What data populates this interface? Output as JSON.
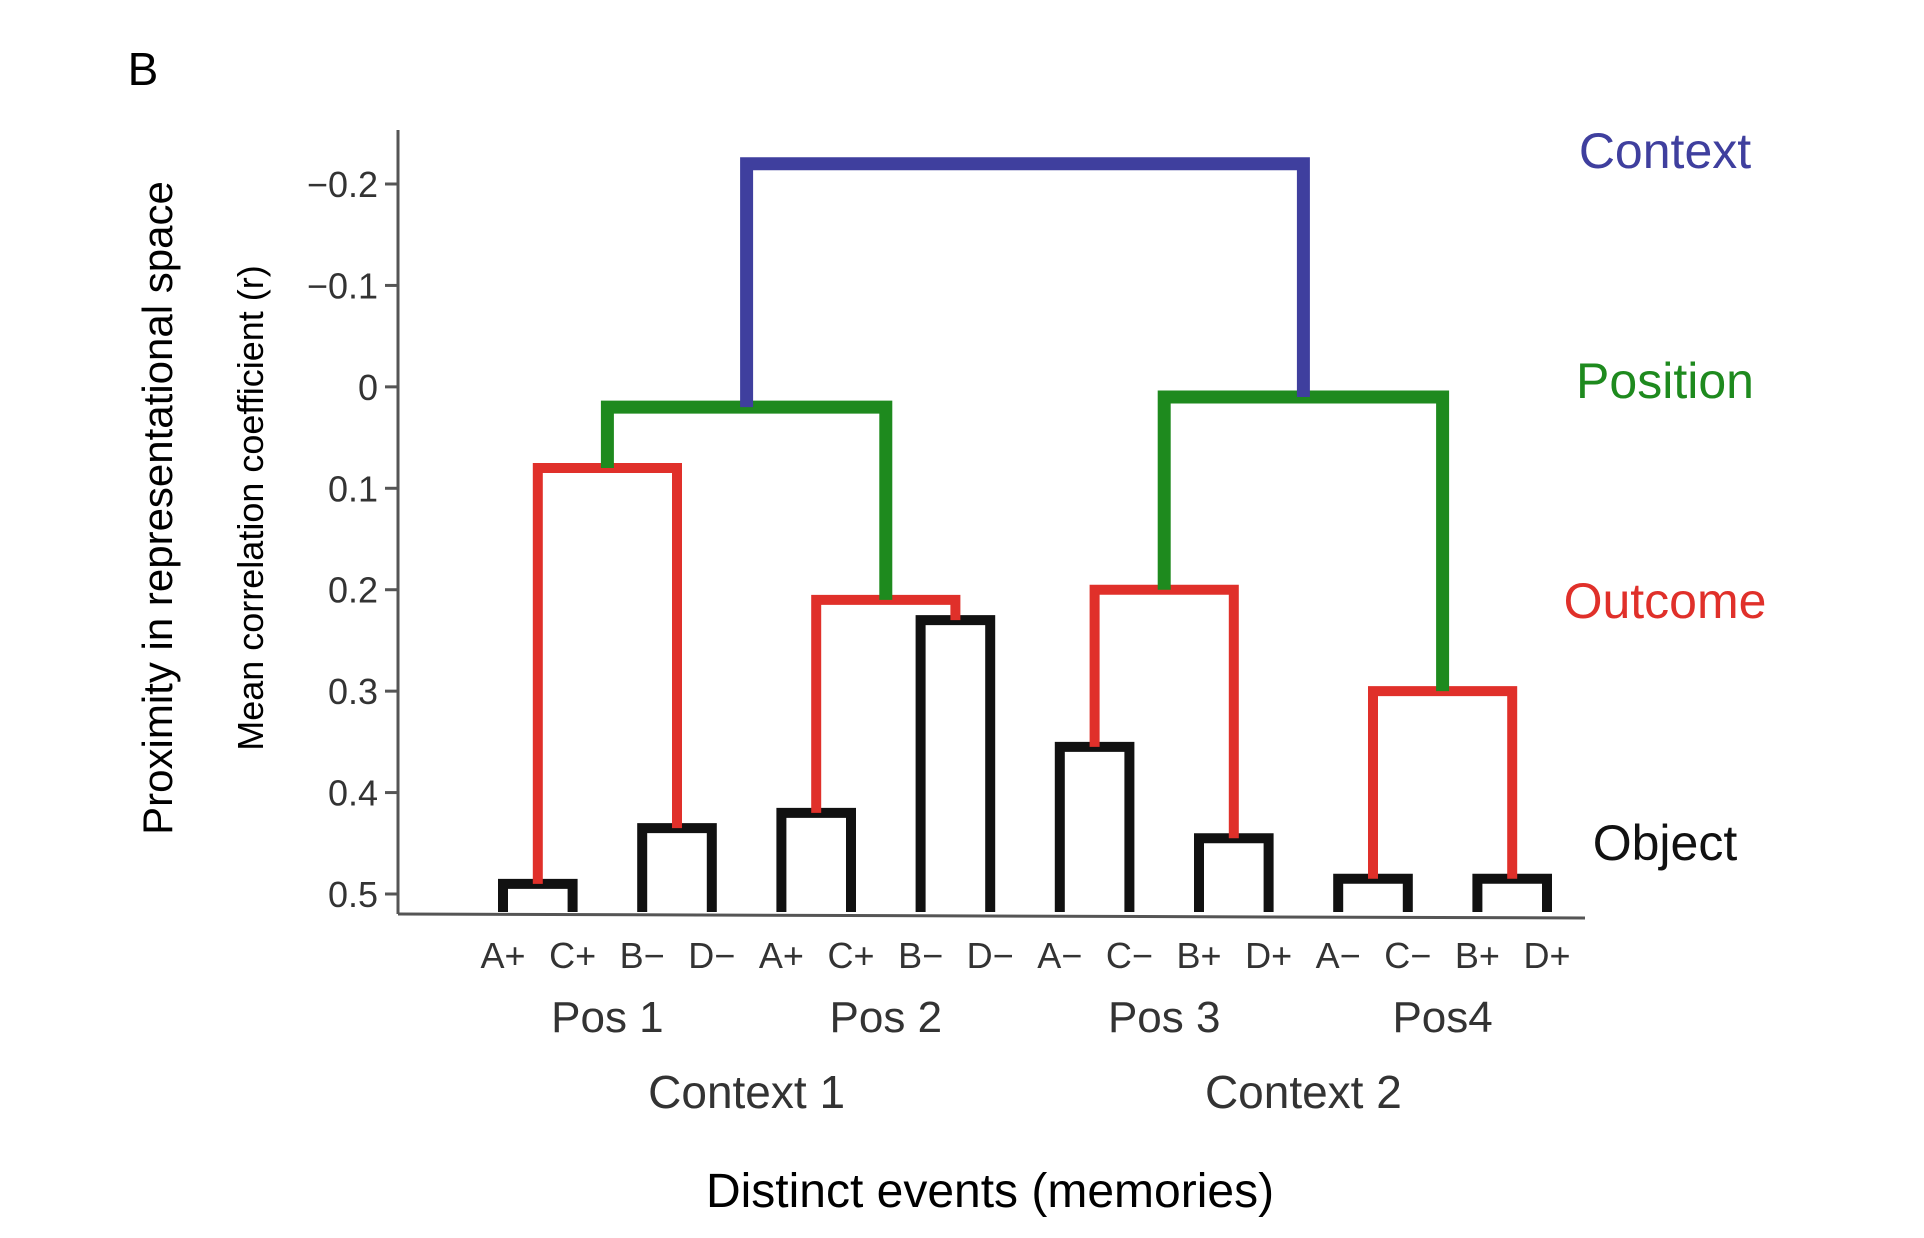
{
  "panel_label": "B",
  "chart_data": {
    "type": "dendrogram",
    "y_label_outer": "Proximity in representational space",
    "y_label_inner": "Mean correlation coefficient (r)",
    "x_label": "Distinct events (memories)",
    "y_ticks": [
      "−0.2",
      "−0.1",
      "0",
      "0.1",
      "0.2",
      "0.3",
      "0.4",
      "0.5"
    ],
    "y_tick_values": [
      -0.2,
      -0.1,
      0,
      0.1,
      0.2,
      0.3,
      0.4,
      0.5
    ],
    "y_range": [
      -0.25,
      0.52
    ],
    "y_axis_inverted": true,
    "leaves": [
      "A+",
      "C+",
      "B−",
      "D−",
      "A+",
      "C+",
      "B−",
      "D−",
      "A−",
      "C−",
      "B+",
      "D+",
      "A−",
      "C−",
      "B+",
      "D+"
    ],
    "position_groups": [
      {
        "label": "Pos 1",
        "leaf_start": 0,
        "leaf_end": 3
      },
      {
        "label": "Pos 2",
        "leaf_start": 4,
        "leaf_end": 7
      },
      {
        "label": "Pos 3",
        "leaf_start": 8,
        "leaf_end": 11
      },
      {
        "label": "Pos4",
        "leaf_start": 12,
        "leaf_end": 15
      }
    ],
    "context_groups": [
      {
        "label": "Context 1",
        "leaf_start": 0,
        "leaf_end": 7
      },
      {
        "label": "Context 2",
        "leaf_start": 8,
        "leaf_end": 15
      }
    ],
    "levels": [
      {
        "name": "Context",
        "color": "#3f3f9e"
      },
      {
        "name": "Position",
        "color": "#1e8a1e"
      },
      {
        "name": "Outcome",
        "color": "#e0302a"
      },
      {
        "name": "Object",
        "color": "#111111"
      }
    ],
    "merges": [
      {
        "id": "o1",
        "left": "leaf:0",
        "right": "leaf:1",
        "height": 0.49,
        "level": "Object"
      },
      {
        "id": "o2",
        "left": "leaf:2",
        "right": "leaf:3",
        "height": 0.435,
        "level": "Object"
      },
      {
        "id": "o3",
        "left": "leaf:4",
        "right": "leaf:5",
        "height": 0.42,
        "level": "Object"
      },
      {
        "id": "o4",
        "left": "leaf:6",
        "right": "leaf:7",
        "height": 0.23,
        "level": "Object"
      },
      {
        "id": "o5",
        "left": "leaf:8",
        "right": "leaf:9",
        "height": 0.355,
        "level": "Object"
      },
      {
        "id": "o6",
        "left": "leaf:10",
        "right": "leaf:11",
        "height": 0.445,
        "level": "Object"
      },
      {
        "id": "o7",
        "left": "leaf:12",
        "right": "leaf:13",
        "height": 0.485,
        "level": "Object"
      },
      {
        "id": "o8",
        "left": "leaf:14",
        "right": "leaf:15",
        "height": 0.485,
        "level": "Object"
      },
      {
        "id": "r1",
        "left": "o1",
        "right": "o2",
        "height": 0.08,
        "level": "Outcome"
      },
      {
        "id": "r2",
        "left": "o3",
        "right": "o4",
        "height": 0.21,
        "level": "Outcome"
      },
      {
        "id": "r3",
        "left": "o5",
        "right": "o6",
        "height": 0.2,
        "level": "Outcome"
      },
      {
        "id": "r4",
        "left": "o7",
        "right": "o8",
        "height": 0.3,
        "level": "Outcome"
      },
      {
        "id": "g1",
        "left": "r1",
        "right": "r2",
        "height": 0.02,
        "level": "Position"
      },
      {
        "id": "g2",
        "left": "r3",
        "right": "r4",
        "height": 0.01,
        "level": "Position"
      },
      {
        "id": "b1",
        "left": "g1",
        "right": "g2",
        "height": -0.22,
        "level": "Context"
      }
    ]
  }
}
